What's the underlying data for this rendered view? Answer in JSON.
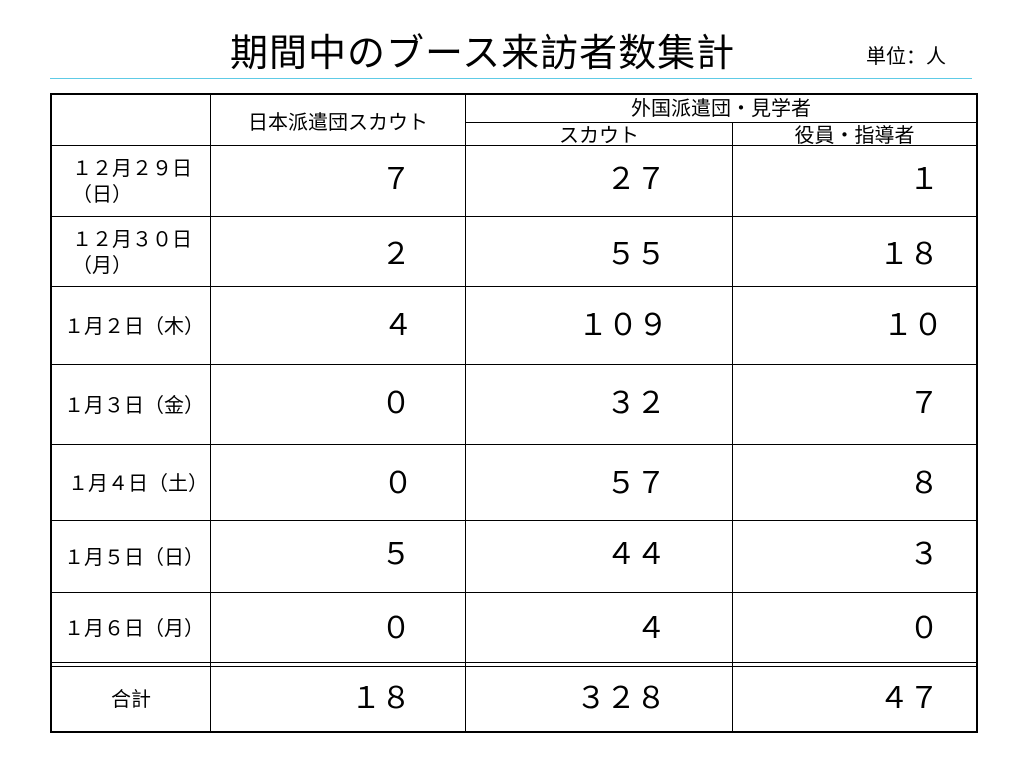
{
  "title": "期間中のブース来訪者数集計",
  "unit": "単位：人",
  "header": {
    "col1": "日本派遣団スカウト",
    "group": "外国派遣団・見学者",
    "col2": "スカウト",
    "col3": "役員・指導者"
  },
  "rows": [
    {
      "date": "１２月２９日\n（日）",
      "a": "７",
      "b": "２７",
      "c": "１"
    },
    {
      "date": "１２月３０日\n（月）",
      "a": "２",
      "b": "５５",
      "c": "１８"
    },
    {
      "date": "１月２日（木）",
      "a": "４",
      "b": "１０９",
      "c": "１０"
    },
    {
      "date": "１月３日（金）",
      "a": "０",
      "b": "３２",
      "c": "７"
    },
    {
      "date": "１月４日（土）",
      "a": "０",
      "b": "５７",
      "c": "８"
    },
    {
      "date": "１月５日（日）",
      "a": "５",
      "b": "４４",
      "c": "３"
    },
    {
      "date": "１月６日（月）",
      "a": "０",
      "b": "４",
      "c": "０"
    }
  ],
  "total": {
    "label": "合計",
    "a": "１８",
    "b": "３２８",
    "c": "４７"
  }
}
